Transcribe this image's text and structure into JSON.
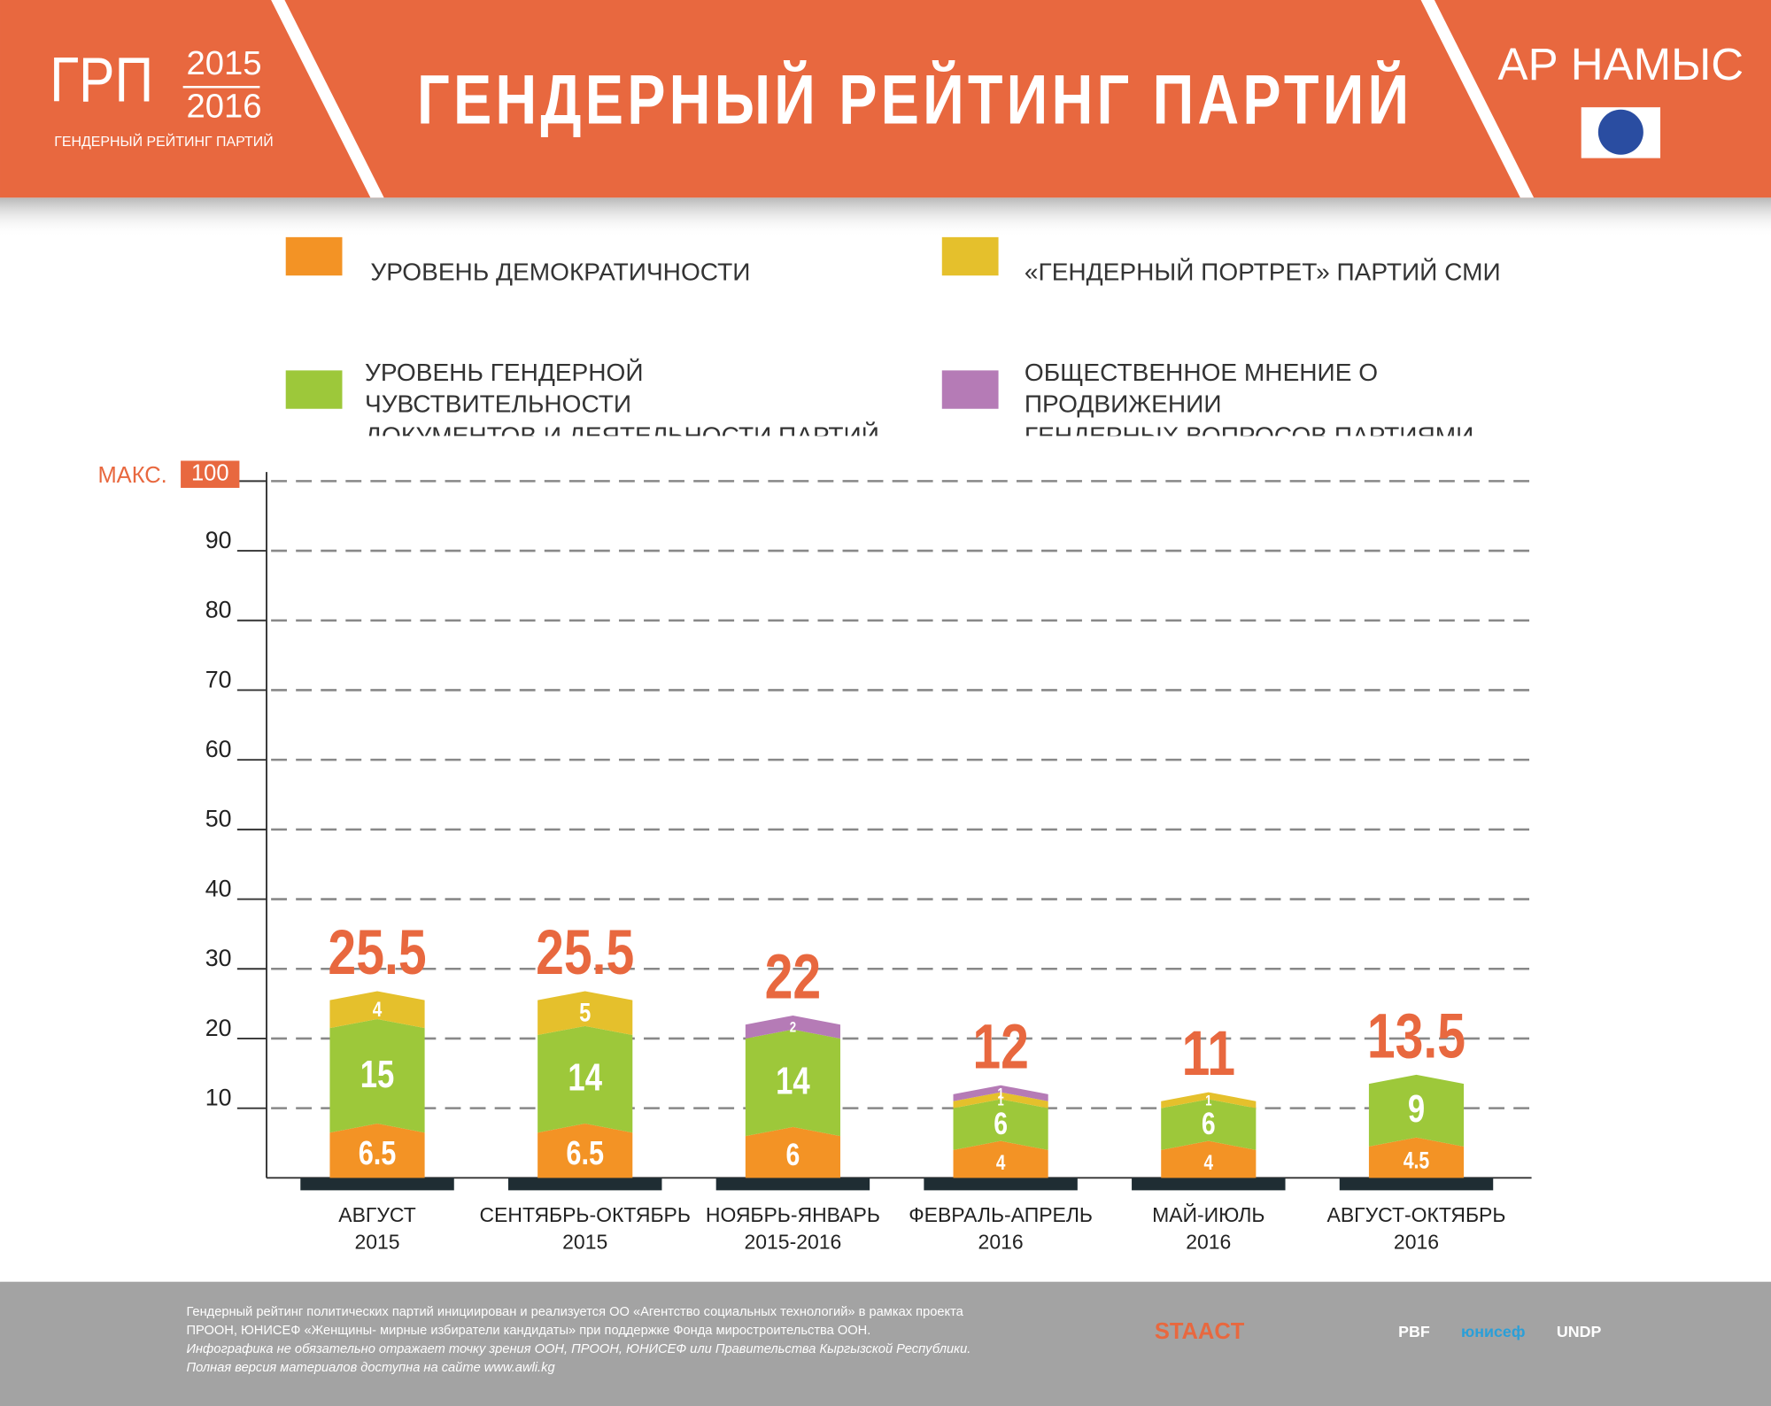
{
  "header": {
    "logo": "ГРП",
    "logo_year1": "2015",
    "logo_year2": "2016",
    "logo_subtitle": "ГЕНДЕРНЫЙ РЕЙТИНГ ПАРТИЙ",
    "org": "АР НАМЫС"
  },
  "chart_data": {
    "type": "stacked_bar",
    "title": "ГЕНДЕРНЫЙ РЕЙТИНГ ПАРТИЙ",
    "categories": [
      "АВГУСТ\n2015",
      "СЕНТЯБРЬ-ОКТЯБРЬ\n2015",
      "НОЯБРЬ-ЯНВАРЬ\n2015-2016",
      "ФЕВРАЛЬ-АПРЕЛЬ\n2016",
      "МАЙ-ИЮЛЬ\n2016",
      "АВГУСТ-ОКТЯБРЬ\n2016"
    ],
    "series": [
      {
        "name": "УРОВЕНЬ ДЕМОКРАТИЧНОСТИ",
        "color": "#f39325",
        "values": [
          6.5,
          6.5,
          6,
          4,
          4,
          4.5
        ]
      },
      {
        "name": "УРОВЕНЬ ГЕНДЕРНОЙ ЧУВСТВИТЕЛЬНОСТИ\nДОКУМЕНТОВ И ДЕЯТЕЛЬНОСТИ ПАРТИЙ",
        "color": "#9dc83a",
        "values": [
          15,
          14,
          14,
          6,
          6,
          9
        ]
      },
      {
        "name": "«ГЕНДЕРНЫЙ ПОРТРЕТ» ПАРТИЙ СМИ",
        "color": "#e5c02c",
        "values": [
          4,
          5,
          null,
          1,
          1,
          null
        ]
      },
      {
        "name": "ОБЩЕСТВЕННОЕ МНЕНИЕ О ПРОДВИЖЕНИИ\nГЕНДЕРНЫХ ВОПРОСОВ ПАРТИЯМИ",
        "color": "#b57bb6",
        "values": [
          null,
          null,
          2,
          1,
          null,
          null
        ]
      }
    ],
    "totals": [
      25.5,
      25.5,
      22,
      12,
      11,
      13.5
    ],
    "totals_color": "#e8683f",
    "ylim": [
      0,
      100
    ],
    "yticks": [
      10,
      20,
      30,
      40,
      50,
      60,
      70,
      80,
      90,
      100
    ],
    "ymax_label": "МАКС.",
    "grid": true
  },
  "footer": {
    "lines": [
      "Гендерный рейтинг политических партий инициирован и реализуется ОО «Агентство социальных технологий» в рамках проекта",
      "ПРООН, ЮНИСЕФ «Женщины- мирные избиратели кандидаты» при поддержке Фонда миростроительства ООН.",
      "Инфографика не обязательно отражает точку зрения ООН, ПРООН, ЮНИСЕФ или Правительства Кыргызской Республики.",
      "Полная версия материалов доступна на сайте www.awli.kg"
    ],
    "logos": [
      "STAACT",
      "PBF",
      "юнисеф",
      "UNDP"
    ]
  }
}
